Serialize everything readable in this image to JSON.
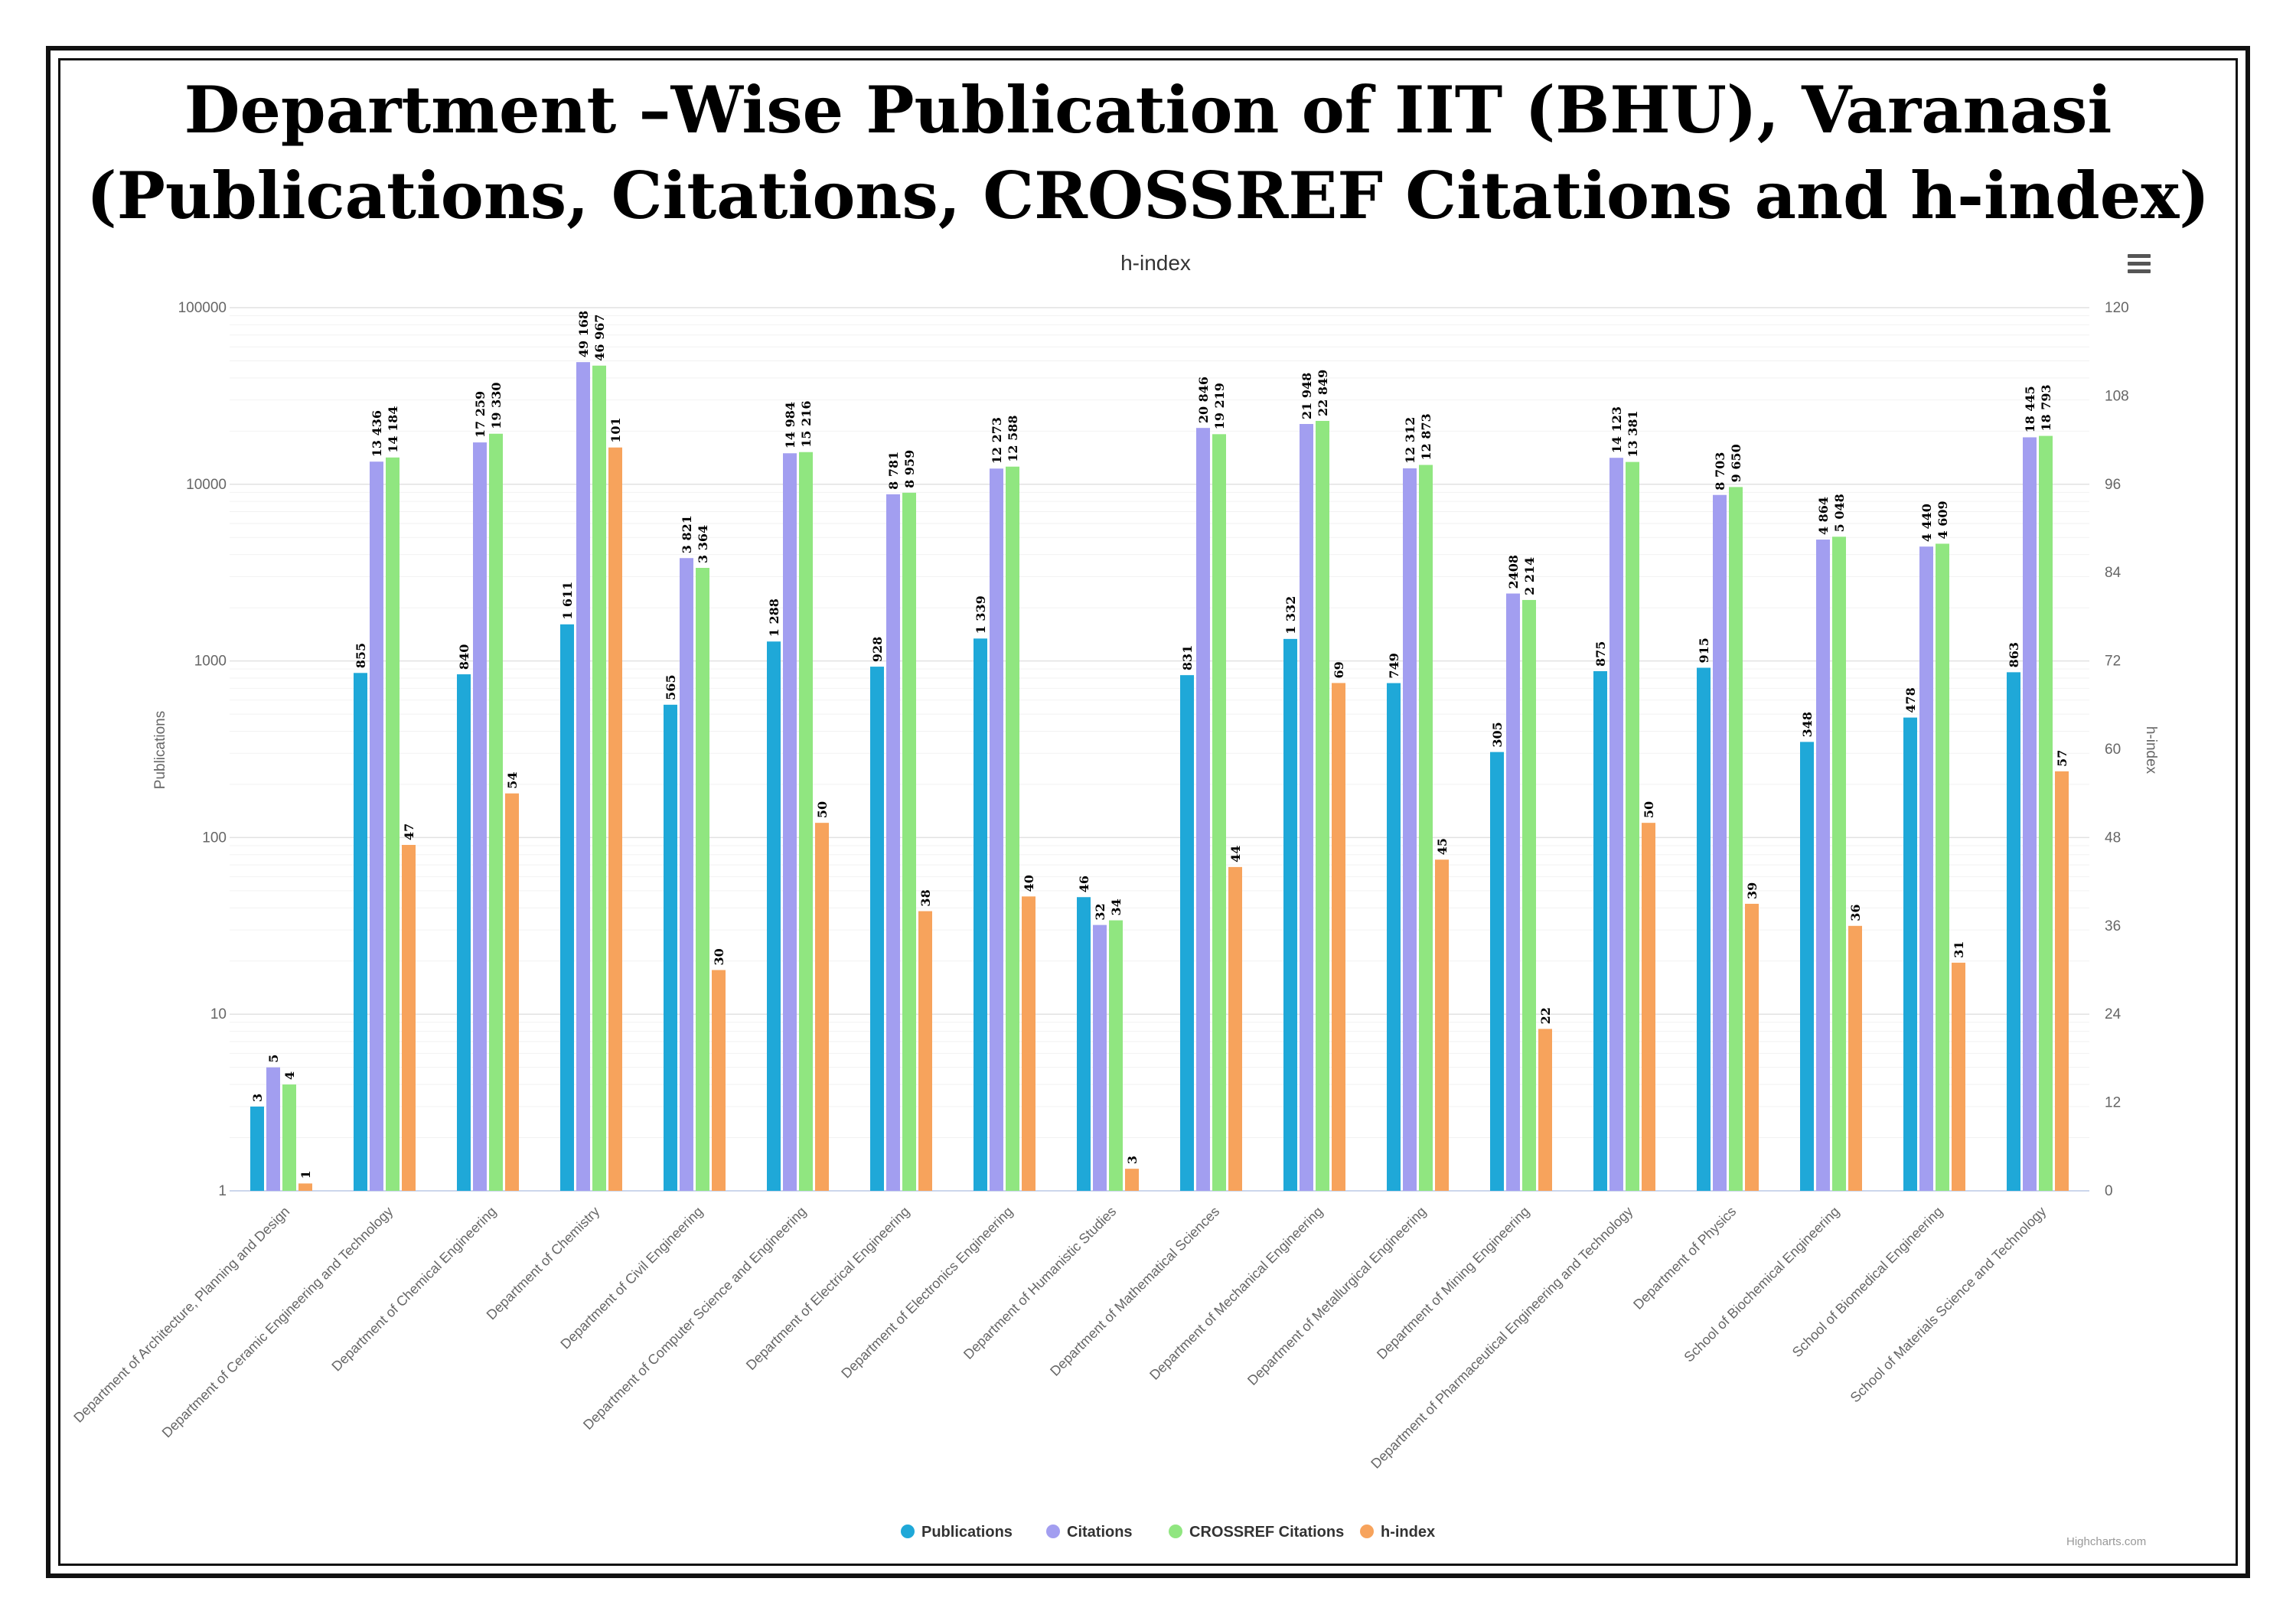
{
  "page": {
    "title_line1": "Department –Wise Publication of IIT (BHU), Varanasi",
    "title_line2": "(Publications, Citations, CROSSREF Citations and h-index)",
    "credits": "Highcharts.com",
    "menu_icon": "hamburger-menu-icon"
  },
  "chart_data": {
    "type": "bar",
    "title": "h-index",
    "xlabel": "",
    "ylabel": "Publications",
    "y2label": "h-index",
    "yscale": "log",
    "ylim": [
      1,
      100000
    ],
    "yticks": [
      "1",
      "10",
      "100",
      "1000",
      "10000",
      "100000"
    ],
    "y2lim": [
      0,
      120
    ],
    "y2ticks": [
      "0",
      "12",
      "24",
      "36",
      "48",
      "60",
      "72",
      "84",
      "96",
      "108",
      "120"
    ],
    "grid": true,
    "legend_position": "bottom-center",
    "categories": [
      "Department of Architecture, Planning and Design",
      "Department of Ceramic Engineering and Technology",
      "Department of Chemical Engineering",
      "Department of Chemistry",
      "Department of Civil Engineering",
      "Department of Computer Science and Engineering",
      "Department of Electrical Engineering",
      "Department of Electronics Engineering",
      "Department of Humanistic Studies",
      "Department of Mathematical Sciences",
      "Department of Mechanical Engineering",
      "Department of Metallurgical Engineering",
      "Department of Mining Engineering",
      "Department of Pharmaceutical Engineering and Technology",
      "Department of Physics",
      "School of Biochemical Engineering",
      "School of Biomedical Engineering",
      "School of Materials Science and Technology"
    ],
    "series": [
      {
        "name": "Publications",
        "color": "#1fa8d8",
        "axis": "left",
        "values": [
          3,
          855,
          840,
          1611,
          565,
          1288,
          928,
          1339,
          46,
          831,
          1332,
          749,
          305,
          875,
          915,
          348,
          478,
          863
        ],
        "labels": [
          "3",
          "855",
          "840",
          "1 611",
          "565",
          "1 288",
          "928",
          "1 339",
          "46",
          "831",
          "1 332",
          "749",
          "305",
          "875",
          "915",
          "348",
          "478",
          "863"
        ]
      },
      {
        "name": "Citations",
        "color": "#a29ef0",
        "axis": "left",
        "values": [
          5,
          13436,
          17259,
          49168,
          3821,
          14984,
          8781,
          12273,
          32,
          20846,
          21948,
          12312,
          2408,
          14123,
          8703,
          4864,
          4440,
          18445
        ],
        "labels": [
          "5",
          "13 436",
          "17 259",
          "49 168",
          "3 821",
          "14 984",
          "8 781",
          "12 273",
          "32",
          "20 846",
          "21 948",
          "12 312",
          "2408",
          "14 123",
          "8 703",
          "4 864",
          "4 440",
          "18 445"
        ]
      },
      {
        "name": "CROSSREF Citations",
        "color": "#90e680",
        "axis": "left",
        "values": [
          4,
          14184,
          19330,
          46967,
          3364,
          15216,
          8959,
          12588,
          34,
          19219,
          22849,
          12873,
          2214,
          13381,
          9650,
          5048,
          4609,
          18793
        ],
        "labels": [
          "4",
          "14 184",
          "19 330",
          "46 967",
          "3 364",
          "15 216",
          "8 959",
          "12 588",
          "34",
          "19 219",
          "22 849",
          "12 873",
          "2 214",
          "13 381",
          "9 650",
          "5 048",
          "4 609",
          "18 793"
        ]
      },
      {
        "name": "h-index",
        "color": "#f7a35c",
        "axis": "right",
        "values": [
          1,
          47,
          54,
          101,
          30,
          50,
          38,
          40,
          3,
          44,
          69,
          45,
          22,
          50,
          39,
          36,
          31,
          57
        ],
        "labels": [
          "1",
          "47",
          "54",
          "101",
          "30",
          "50",
          "38",
          "40",
          "3",
          "44",
          "69",
          "45",
          "22",
          "50",
          "39",
          "36",
          "31",
          "57"
        ]
      }
    ]
  }
}
